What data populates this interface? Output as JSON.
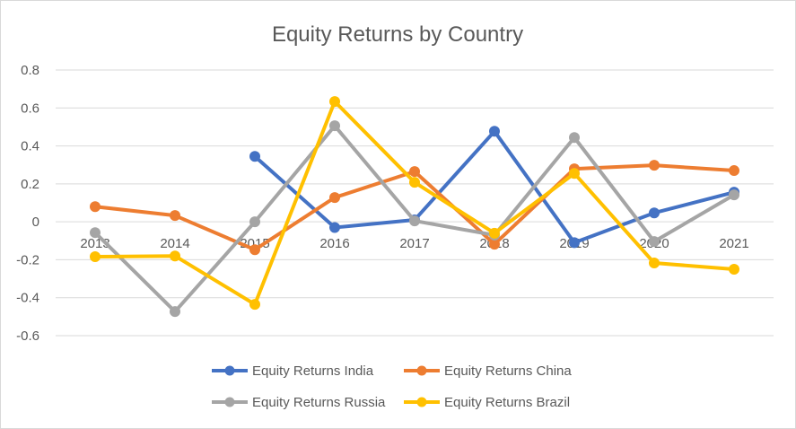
{
  "chart_data": {
    "type": "line",
    "title": "Equity Returns by Country",
    "xlabel": "",
    "ylabel": "",
    "categories": [
      "2013",
      "2014",
      "2015",
      "2016",
      "2017",
      "2018",
      "2019",
      "2020",
      "2021"
    ],
    "ylim": [
      -0.6,
      0.8
    ],
    "yticks": [
      "0.8",
      "0.6",
      "0.4",
      "0.2",
      "0",
      "-0.2",
      "-0.4",
      "-0.6"
    ],
    "grid": true,
    "legend_position": "bottom",
    "series": [
      {
        "name": "Equity Returns India",
        "color": "#4472c4",
        "values": [
          null,
          null,
          0.345,
          -0.03,
          0.01,
          0.477,
          -0.11,
          0.047,
          0.156
        ]
      },
      {
        "name": "Equity Returns China",
        "color": "#ed7d31",
        "values": [
          0.08,
          0.033,
          -0.147,
          0.128,
          0.265,
          -0.118,
          0.279,
          0.298,
          0.27
        ]
      },
      {
        "name": "Equity Returns Russia",
        "color": "#a5a5a5",
        "values": [
          -0.057,
          -0.473,
          0.0,
          0.506,
          0.005,
          -0.07,
          0.444,
          -0.104,
          0.142
        ]
      },
      {
        "name": "Equity Returns Brazil",
        "color": "#ffc000",
        "values": [
          -0.184,
          -0.18,
          -0.435,
          0.634,
          0.208,
          -0.06,
          0.255,
          -0.217,
          -0.25
        ]
      }
    ]
  }
}
